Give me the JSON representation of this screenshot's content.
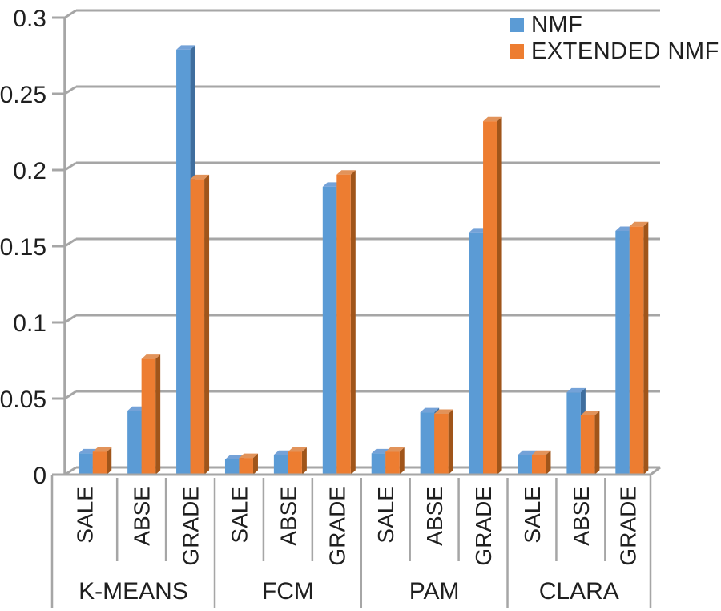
{
  "chart_data": {
    "type": "bar",
    "style": "3d-clustered-column",
    "title": "",
    "groups": [
      "K-MEANS",
      "FCM",
      "PAM",
      "CLARA"
    ],
    "subcategories": [
      "SALE",
      "ABSE",
      "GRADE"
    ],
    "series": [
      {
        "name": "NMF",
        "color": "#5B9BD5",
        "color_top": "#74A2D8",
        "color_side": "#3F6E9E",
        "values": [
          0.014,
          0.042,
          0.279,
          0.01,
          0.013,
          0.189,
          0.014,
          0.041,
          0.159,
          0.013,
          0.054,
          0.16
        ]
      },
      {
        "name": "EXTENDED NMF",
        "color": "#ED7D31",
        "color_top": "#E2935A",
        "color_side": "#A0551A",
        "values": [
          0.015,
          0.076,
          0.194,
          0.011,
          0.015,
          0.197,
          0.015,
          0.04,
          0.232,
          0.013,
          0.039,
          0.163
        ]
      }
    ],
    "ylim": [
      0,
      0.3
    ],
    "ytick_step": 0.05,
    "ytick_labels": [
      "0",
      "0.05",
      "0.1",
      "0.15",
      "0.2",
      "0.25",
      "0.3"
    ],
    "grid": true,
    "legend_position": "top-right",
    "axis_color": "#A6A6A6",
    "text_color": "#1F1F1F"
  },
  "legend": {
    "items": [
      {
        "label": "NMF",
        "color": "#5B9BD5"
      },
      {
        "label": "EXTENDED NMF",
        "color": "#ED7D31"
      }
    ]
  }
}
